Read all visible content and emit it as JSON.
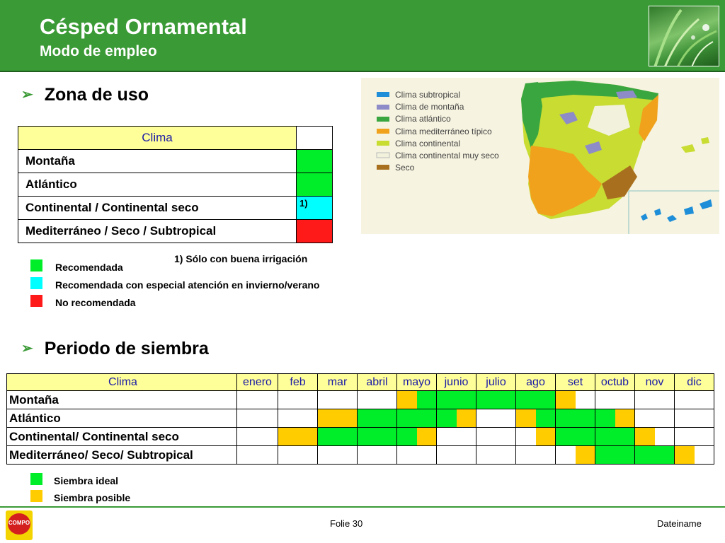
{
  "header": {
    "title": "Césped Ornamental",
    "subtitle": "Modo de empleo",
    "photo_icon": "grass-photo"
  },
  "colors": {
    "header_green": "#3a9a35",
    "recomendada": "#00ee2a",
    "especial": "#00ffff",
    "no_recomendada": "#ff1a1a",
    "siembra_ideal": "#00ee2a",
    "siembra_posible": "#ffcc00",
    "table_header_bg": "#ffff99"
  },
  "zona": {
    "heading": "Zona de uso",
    "table_header": "Clima",
    "rows": [
      {
        "label": "Montaña",
        "status": "recomendada",
        "note": ""
      },
      {
        "label": "Atlántico",
        "status": "recomendada",
        "note": ""
      },
      {
        "label": "Continental / Continental seco",
        "status": "especial",
        "note": "1)"
      },
      {
        "label": "Mediterráneo / Seco / Subtropical",
        "status": "no_recomendada",
        "note": ""
      }
    ],
    "footnote": "1) Sólo con buena irrigación",
    "legend": [
      {
        "label": "Recomendada",
        "status": "recomendada"
      },
      {
        "label": "Recomendada con especial atención en invierno/verano",
        "status": "especial"
      },
      {
        "label": "No recomendada",
        "status": "no_recomendada"
      }
    ]
  },
  "map": {
    "legend": [
      {
        "label": "Clima subtropical",
        "color": "#1e8ed8"
      },
      {
        "label": "Clima de montaña",
        "color": "#8e8cc8"
      },
      {
        "label": "Clima atlántico",
        "color": "#3aa640"
      },
      {
        "label": "Clima mediterráneo típico",
        "color": "#f0a21c"
      },
      {
        "label": "Clima continental",
        "color": "#c8dc32"
      },
      {
        "label": "Clima continental muy seco",
        "color": "#f2f2dc"
      },
      {
        "label": "Seco",
        "color": "#a8701e"
      }
    ]
  },
  "siembra": {
    "heading": "Periodo de siembra",
    "table_header": "Clima",
    "months": [
      "enero",
      "feb",
      "mar",
      "abril",
      "mayo",
      "junio",
      "julio",
      "ago",
      "set",
      "octub",
      "nov",
      "dic"
    ],
    "rows": [
      {
        "label": "Montaña",
        "cells": [
          [
            "",
            ""
          ],
          [
            "",
            ""
          ],
          [
            "",
            ""
          ],
          [
            "",
            ""
          ],
          [
            "P",
            "I"
          ],
          [
            "I",
            "I"
          ],
          [
            "I",
            "I"
          ],
          [
            "I",
            "I"
          ],
          [
            "P",
            ""
          ],
          [
            "",
            ""
          ],
          [
            "",
            ""
          ],
          [
            "",
            ""
          ]
        ]
      },
      {
        "label": "Atlántico",
        "cells": [
          [
            "",
            ""
          ],
          [
            "",
            ""
          ],
          [
            "P",
            "P"
          ],
          [
            "I",
            "I"
          ],
          [
            "I",
            "I"
          ],
          [
            "I",
            "P"
          ],
          [
            "",
            ""
          ],
          [
            "P",
            "I"
          ],
          [
            "I",
            "I"
          ],
          [
            "I",
            "P"
          ],
          [
            "",
            ""
          ],
          [
            "",
            ""
          ]
        ]
      },
      {
        "label": "Continental/ Continental seco",
        "cells": [
          [
            "",
            ""
          ],
          [
            "P",
            "P"
          ],
          [
            "I",
            "I"
          ],
          [
            "I",
            "I"
          ],
          [
            "I",
            "P"
          ],
          [
            "",
            ""
          ],
          [
            "",
            ""
          ],
          [
            "",
            "P"
          ],
          [
            "I",
            "I"
          ],
          [
            "I",
            "I"
          ],
          [
            "P",
            ""
          ],
          [
            "",
            ""
          ]
        ]
      },
      {
        "label": "Mediterráneo/ Seco/ Subtropical",
        "cells": [
          [
            "",
            ""
          ],
          [
            "",
            ""
          ],
          [
            "",
            ""
          ],
          [
            "",
            ""
          ],
          [
            "",
            ""
          ],
          [
            "",
            ""
          ],
          [
            "",
            ""
          ],
          [
            "",
            ""
          ],
          [
            "",
            "P"
          ],
          [
            "I",
            "I"
          ],
          [
            "I",
            "I"
          ],
          [
            "P",
            ""
          ]
        ]
      }
    ],
    "legend": [
      {
        "label": "Siembra ideal",
        "status": "siembra_ideal"
      },
      {
        "label": "Siembra posible",
        "status": "siembra_posible"
      }
    ]
  },
  "footer": {
    "logo_text": "COMPO",
    "folie": "Folie 30",
    "dateiname": "Dateiname"
  }
}
